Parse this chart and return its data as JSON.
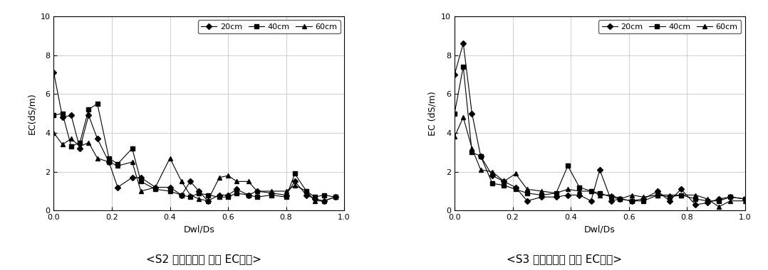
{
  "s2": {
    "title": "<S2 토양에서의 토양 EC변화>",
    "ylabel": "EC(dS/m)",
    "xlabel": "Dwl/Ds",
    "xlim": [
      0.0,
      1.0
    ],
    "ylim": [
      0,
      10
    ],
    "yticks": [
      0,
      2,
      4,
      6,
      8,
      10
    ],
    "xticks": [
      0.0,
      0.2,
      0.4,
      0.6,
      0.8,
      1.0
    ],
    "series": {
      "20cm": {
        "x": [
          0.0,
          0.03,
          0.06,
          0.09,
          0.12,
          0.15,
          0.19,
          0.22,
          0.27,
          0.3,
          0.35,
          0.4,
          0.44,
          0.47,
          0.5,
          0.53,
          0.57,
          0.6,
          0.63,
          0.67,
          0.7,
          0.75,
          0.8,
          0.83,
          0.87,
          0.9,
          0.93,
          0.97
        ],
        "y": [
          7.1,
          4.8,
          4.9,
          3.2,
          4.9,
          3.7,
          2.5,
          1.2,
          1.7,
          1.7,
          1.2,
          1.2,
          0.8,
          1.5,
          1.0,
          0.5,
          0.8,
          0.8,
          1.1,
          0.8,
          1.0,
          0.9,
          0.8,
          1.5,
          0.8,
          0.6,
          0.5,
          0.7
        ],
        "marker": "D",
        "markersize": 4
      },
      "40cm": {
        "x": [
          0.0,
          0.03,
          0.06,
          0.09,
          0.12,
          0.15,
          0.19,
          0.22,
          0.27,
          0.3,
          0.35,
          0.4,
          0.44,
          0.47,
          0.5,
          0.53,
          0.57,
          0.6,
          0.63,
          0.67,
          0.7,
          0.75,
          0.8,
          0.83,
          0.87,
          0.9,
          0.93,
          0.97
        ],
        "y": [
          4.9,
          5.0,
          3.3,
          3.5,
          5.2,
          5.5,
          2.7,
          2.4,
          3.2,
          1.5,
          1.1,
          1.0,
          0.8,
          0.7,
          0.9,
          0.8,
          0.7,
          0.7,
          0.9,
          0.8,
          0.7,
          0.8,
          0.7,
          1.9,
          1.0,
          0.7,
          0.8,
          0.7
        ],
        "marker": "s",
        "markersize": 4
      },
      "60cm": {
        "x": [
          0.0,
          0.03,
          0.06,
          0.09,
          0.12,
          0.15,
          0.19,
          0.22,
          0.27,
          0.3,
          0.35,
          0.4,
          0.44,
          0.47,
          0.5,
          0.53,
          0.57,
          0.6,
          0.63,
          0.67,
          0.7,
          0.75,
          0.8,
          0.83,
          0.87,
          0.9,
          0.93,
          0.97
        ],
        "y": [
          4.0,
          3.4,
          3.7,
          3.3,
          3.5,
          2.7,
          2.5,
          2.3,
          2.5,
          1.0,
          1.2,
          2.7,
          1.5,
          0.8,
          0.6,
          0.5,
          1.7,
          1.8,
          1.5,
          1.5,
          1.0,
          1.0,
          1.0,
          1.3,
          1.0,
          0.5,
          0.5,
          0.7
        ],
        "marker": "^",
        "markersize": 4
      }
    }
  },
  "s3": {
    "title": "<S3 토양에서의 토양 EC변화>",
    "ylabel": "EC (dS/m)",
    "xlabel": "Dwl/Ds",
    "xlim": [
      0.0,
      1.0
    ],
    "ylim": [
      0,
      10
    ],
    "yticks": [
      0,
      2,
      4,
      6,
      8,
      10
    ],
    "xticks": [
      0.0,
      0.2,
      0.4,
      0.6,
      0.8,
      1.0
    ],
    "series": {
      "20cm": {
        "x": [
          0.0,
          0.03,
          0.06,
          0.09,
          0.13,
          0.17,
          0.21,
          0.25,
          0.3,
          0.35,
          0.39,
          0.43,
          0.47,
          0.5,
          0.54,
          0.57,
          0.61,
          0.65,
          0.7,
          0.74,
          0.78,
          0.83,
          0.87,
          0.91,
          0.95,
          1.0
        ],
        "y": [
          7.0,
          8.6,
          5.0,
          2.8,
          1.8,
          1.5,
          1.2,
          0.5,
          0.7,
          0.7,
          0.8,
          0.8,
          0.5,
          2.1,
          0.5,
          0.6,
          0.5,
          0.6,
          1.0,
          0.5,
          1.1,
          0.3,
          0.4,
          0.6,
          0.7,
          0.6
        ],
        "marker": "D",
        "markersize": 4
      },
      "40cm": {
        "x": [
          0.0,
          0.03,
          0.06,
          0.09,
          0.13,
          0.17,
          0.21,
          0.25,
          0.3,
          0.35,
          0.39,
          0.43,
          0.47,
          0.5,
          0.54,
          0.57,
          0.61,
          0.65,
          0.7,
          0.74,
          0.78,
          0.83,
          0.87,
          0.91,
          0.95,
          1.0
        ],
        "y": [
          5.0,
          7.4,
          3.0,
          2.8,
          1.4,
          1.3,
          1.1,
          0.9,
          0.8,
          0.9,
          2.3,
          1.2,
          1.0,
          0.9,
          0.7,
          0.6,
          0.5,
          0.5,
          0.8,
          0.7,
          0.8,
          0.6,
          0.5,
          0.5,
          0.7,
          0.6
        ],
        "marker": "s",
        "markersize": 4
      },
      "60cm": {
        "x": [
          0.0,
          0.03,
          0.06,
          0.09,
          0.13,
          0.17,
          0.21,
          0.25,
          0.3,
          0.35,
          0.39,
          0.43,
          0.47,
          0.5,
          0.54,
          0.57,
          0.61,
          0.65,
          0.7,
          0.74,
          0.78,
          0.83,
          0.87,
          0.91,
          0.95,
          1.0
        ],
        "y": [
          3.8,
          4.8,
          3.2,
          2.1,
          2.0,
          1.5,
          1.9,
          1.1,
          1.0,
          0.9,
          1.1,
          1.0,
          1.0,
          0.8,
          0.8,
          0.6,
          0.8,
          0.7,
          0.8,
          0.8,
          0.8,
          0.8,
          0.6,
          0.2,
          0.5,
          0.5
        ],
        "marker": "^",
        "markersize": 4
      }
    }
  },
  "line_color": "#000000",
  "legend_labels": [
    "20cm",
    "40cm",
    "60cm"
  ],
  "caption_fontsize": 11,
  "label_fontsize": 9,
  "tick_fontsize": 8,
  "legend_fontsize": 8
}
